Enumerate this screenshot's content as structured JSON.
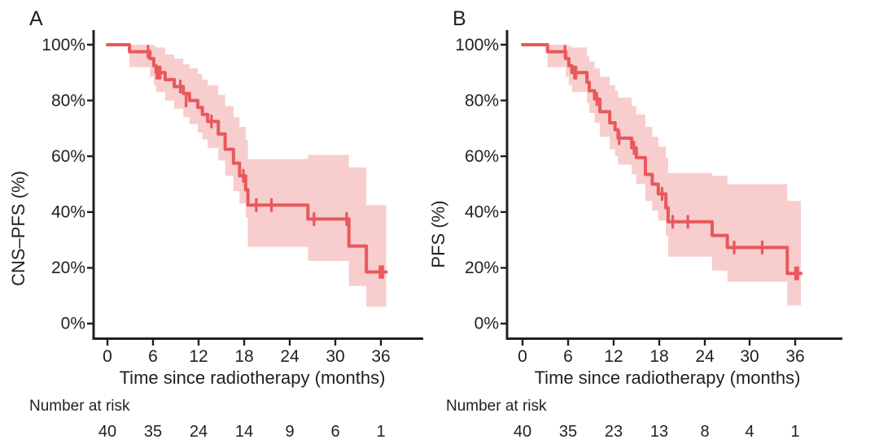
{
  "colors": {
    "curve": "#e8585c",
    "band_fill": "#e8585c",
    "band_rendered": "#f8cecf",
    "axis": "#231f20",
    "text": "#231f20"
  },
  "chart_data": [
    {
      "type": "line",
      "subtype": "kaplan-meier-step-curve-with-confidence-band",
      "panel_label": "A",
      "ylabel": "CNS–PFS (%)",
      "xlabel": "Time since radiotherapy (months)",
      "xlim": [
        0,
        38.5
      ],
      "ylim": [
        0,
        100
      ],
      "grid": false,
      "legend": false,
      "x_ticks": [
        0,
        6,
        12,
        18,
        24,
        30,
        36
      ],
      "y_tick_labels": [
        "100%",
        "80%",
        "60%",
        "40%",
        "20%",
        "0%"
      ],
      "curve_end_time": 36.7,
      "km_steps_comment": "each entry: [time_months, survival_pct, ci_lower_pct, ci_upper_pct]",
      "km_steps": [
        [
          0,
          100,
          100,
          100
        ],
        [
          2.9,
          97.5,
          92.0,
          100
        ],
        [
          5.6,
          95.0,
          88.5,
          100
        ],
        [
          6.1,
          92.5,
          85.5,
          99.5
        ],
        [
          6.4,
          90.0,
          83.0,
          99.0
        ],
        [
          7.6,
          87.5,
          80.0,
          96.5
        ],
        [
          8.8,
          85.0,
          77.0,
          95.0
        ],
        [
          10.0,
          82.5,
          74.0,
          93.0
        ],
        [
          10.8,
          80.0,
          71.5,
          91.5
        ],
        [
          11.9,
          77.5,
          68.5,
          89.5
        ],
        [
          12.5,
          75.0,
          66.0,
          87.5
        ],
        [
          13.2,
          72.5,
          63.0,
          85.5
        ],
        [
          14.6,
          68.0,
          58.5,
          82.0
        ],
        [
          15.5,
          62.5,
          53.0,
          78.0
        ],
        [
          16.6,
          57.5,
          47.5,
          74.0
        ],
        [
          17.4,
          53.0,
          43.0,
          70.5
        ],
        [
          18.2,
          48.0,
          38.0,
          66.0
        ],
        [
          18.5,
          42.5,
          27.5,
          59.0
        ],
        [
          26.4,
          37.5,
          22.5,
          60.5
        ],
        [
          31.8,
          27.8,
          13.5,
          56.0
        ],
        [
          34.1,
          18.5,
          6.0,
          42.5
        ]
      ],
      "censor_marks": [
        [
          5.35,
          97.5
        ],
        [
          6.5,
          90
        ],
        [
          6.7,
          90
        ],
        [
          6.95,
          90
        ],
        [
          9.6,
          85
        ],
        [
          10.35,
          80
        ],
        [
          13.7,
          72.5
        ],
        [
          17.9,
          53.0
        ],
        [
          19.6,
          42.5
        ],
        [
          21.6,
          42.5
        ],
        [
          27.2,
          37.5
        ],
        [
          31.5,
          37.5
        ],
        [
          35.9,
          18.5
        ],
        [
          36.25,
          18.5
        ]
      ],
      "number_at_risk": {
        "header": "Number at risk",
        "times": [
          0,
          6,
          12,
          18,
          24,
          30,
          36
        ],
        "values": [
          40,
          35,
          24,
          14,
          9,
          6,
          1
        ]
      }
    },
    {
      "type": "line",
      "subtype": "kaplan-meier-step-curve-with-confidence-band",
      "panel_label": "B",
      "ylabel": "PFS (%)",
      "xlabel": "Time since radiotherapy (months)",
      "xlim": [
        0,
        38.5
      ],
      "ylim": [
        0,
        100
      ],
      "grid": false,
      "legend": false,
      "x_ticks": [
        0,
        6,
        12,
        18,
        24,
        30,
        36
      ],
      "y_tick_labels": [
        "100%",
        "80%",
        "60%",
        "40%",
        "20%",
        "0%"
      ],
      "curve_end_time": 36.7,
      "km_steps_comment": "each entry: [time_months, survival_pct, ci_lower_pct, ci_upper_pct]",
      "km_steps": [
        [
          0,
          100,
          100,
          100
        ],
        [
          3.3,
          97.5,
          92.0,
          100
        ],
        [
          5.7,
          95.0,
          88.5,
          100
        ],
        [
          6.1,
          92.5,
          85.5,
          99.5
        ],
        [
          6.5,
          90.0,
          83.0,
          99.0
        ],
        [
          8.5,
          86.5,
          79.0,
          96.0
        ],
        [
          8.8,
          83.5,
          75.5,
          94.0
        ],
        [
          9.5,
          80.5,
          72.0,
          91.5
        ],
        [
          10.2,
          76.0,
          67.0,
          88.5
        ],
        [
          11.5,
          72.0,
          62.5,
          85.5
        ],
        [
          12.2,
          69.5,
          60.0,
          83.5
        ],
        [
          12.6,
          66.5,
          57.0,
          81.0
        ],
        [
          14.4,
          63.0,
          53.5,
          78.0
        ],
        [
          15.0,
          59.5,
          50.0,
          75.0
        ],
        [
          16.2,
          53.5,
          44.0,
          70.5
        ],
        [
          17.1,
          50.0,
          40.5,
          67.0
        ],
        [
          17.9,
          46.5,
          37.0,
          63.5
        ],
        [
          18.9,
          41.5,
          31.5,
          59.5
        ],
        [
          19.2,
          36.5,
          24.0,
          54.0
        ],
        [
          25.0,
          31.6,
          19.0,
          53.0
        ],
        [
          27.0,
          27.3,
          15.0,
          50.0
        ],
        [
          34.9,
          18.0,
          6.5,
          44.0
        ]
      ],
      "censor_marks": [
        [
          5.6,
          97.5
        ],
        [
          6.85,
          90
        ],
        [
          7.05,
          90
        ],
        [
          9.8,
          80.5
        ],
        [
          12.75,
          66.5
        ],
        [
          14.7,
          63.0
        ],
        [
          18.4,
          46.5
        ],
        [
          19.8,
          36.5
        ],
        [
          21.8,
          36.5
        ],
        [
          27.9,
          27.3
        ],
        [
          31.6,
          27.3
        ],
        [
          36.0,
          18.0
        ],
        [
          36.3,
          18.0
        ]
      ],
      "number_at_risk": {
        "header": "Number at risk",
        "times": [
          0,
          6,
          12,
          18,
          24,
          30,
          36
        ],
        "values": [
          40,
          35,
          23,
          13,
          8,
          4,
          1
        ]
      }
    }
  ]
}
